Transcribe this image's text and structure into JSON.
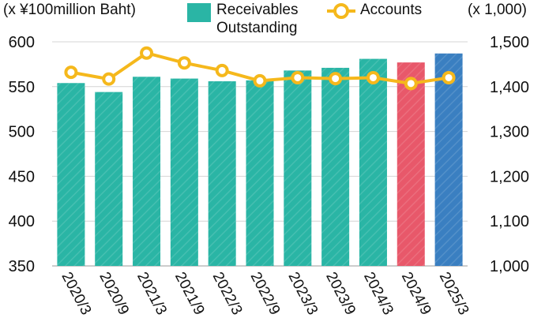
{
  "chart_data": {
    "type": "bar",
    "categories": [
      "2020/3",
      "2020/9",
      "2021/3",
      "2021/9",
      "2022/3",
      "2022/9",
      "2023/3",
      "2023/9",
      "2024/3",
      "2024/9",
      "2025/3"
    ],
    "series": [
      {
        "name": "Receivables Outstanding",
        "axis": "left",
        "type": "bar",
        "values": [
          554,
          544,
          561,
          559,
          556,
          557,
          568,
          571,
          581,
          577,
          587
        ]
      },
      {
        "name": "Accounts",
        "axis": "right",
        "type": "line",
        "values": [
          1432,
          1417,
          1475,
          1453,
          1436,
          1413,
          1420,
          1418,
          1420,
          1407,
          1420
        ]
      }
    ],
    "bar_colors": [
      "#2ab5a5",
      "#2ab5a5",
      "#2ab5a5",
      "#2ab5a5",
      "#2ab5a5",
      "#2ab5a5",
      "#2ab5a5",
      "#2ab5a5",
      "#2ab5a5",
      "#e8586a",
      "#3a7fc1"
    ],
    "line_color": "#f5b81c",
    "left_axis": {
      "unit_label": "(x ¥100million Baht)",
      "ylim": [
        350,
        600
      ],
      "ticks": [
        600,
        550,
        500,
        450,
        400,
        350
      ]
    },
    "right_axis": {
      "unit_label": "(x 1,000)",
      "ylim": [
        1000,
        1500
      ],
      "ticks": [
        "1,500",
        "1,400",
        "1,300",
        "1,200",
        "1,100",
        "1,000"
      ],
      "tick_values": [
        1500,
        1400,
        1300,
        1200,
        1100,
        1000
      ]
    },
    "legend": {
      "bar_label_lines": [
        "Receivables",
        "Outstanding"
      ],
      "line_label": "Accounts",
      "placement": "top"
    },
    "grid": true
  }
}
